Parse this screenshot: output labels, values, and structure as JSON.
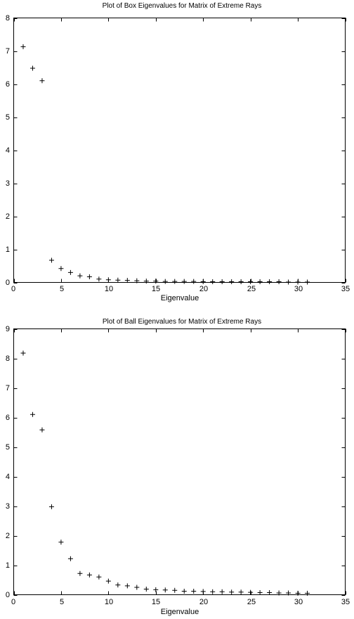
{
  "chart_data": [
    {
      "type": "scatter",
      "title": "Plot of Box Eigenvalues for Matrix of Extreme Rays",
      "xlabel": "Eigenvalue",
      "ylabel": "",
      "xlim": [
        0,
        35
      ],
      "ylim": [
        0,
        8
      ],
      "xticks": [
        "0",
        "5",
        "10",
        "15",
        "20",
        "25",
        "30",
        "35"
      ],
      "yticks": [
        "0",
        "1",
        "2",
        "3",
        "4",
        "5",
        "6",
        "7",
        "8"
      ],
      "marker": "+",
      "grid": false,
      "x": [
        1,
        2,
        3,
        4,
        5,
        6,
        7,
        8,
        9,
        10,
        11,
        12,
        13,
        14,
        15,
        16,
        17,
        18,
        19,
        20,
        21,
        22,
        23,
        24,
        25,
        26,
        27,
        28,
        29,
        30,
        31
      ],
      "y": [
        7.13,
        6.48,
        6.1,
        0.67,
        0.42,
        0.3,
        0.2,
        0.17,
        0.1,
        0.08,
        0.07,
        0.06,
        0.05,
        0.04,
        0.04,
        0.03,
        0.03,
        0.03,
        0.03,
        0.02,
        0.02,
        0.02,
        0.02,
        0.02,
        0.02,
        0.02,
        0.02,
        0.02,
        0.01,
        0.01,
        0.01
      ]
    },
    {
      "type": "scatter",
      "title": "Plot of Ball Eigenvalues for Matrix of Extreme Rays",
      "xlabel": "Eigenvalue",
      "ylabel": "",
      "xlim": [
        0,
        35
      ],
      "ylim": [
        0,
        9
      ],
      "xticks": [
        "0",
        "5",
        "10",
        "15",
        "20",
        "25",
        "30",
        "35"
      ],
      "yticks": [
        "0",
        "1",
        "2",
        "3",
        "4",
        "5",
        "6",
        "7",
        "8",
        "9"
      ],
      "marker": "+",
      "grid": false,
      "x": [
        1,
        2,
        3,
        4,
        5,
        6,
        7,
        8,
        9,
        10,
        11,
        12,
        13,
        14,
        15,
        16,
        17,
        18,
        19,
        20,
        21,
        22,
        23,
        24,
        25,
        26,
        27,
        28,
        29,
        30,
        31
      ],
      "y": [
        8.18,
        6.1,
        5.58,
        2.98,
        1.78,
        1.22,
        0.72,
        0.67,
        0.6,
        0.46,
        0.33,
        0.3,
        0.25,
        0.19,
        0.17,
        0.16,
        0.15,
        0.12,
        0.12,
        0.11,
        0.1,
        0.1,
        0.09,
        0.09,
        0.08,
        0.07,
        0.07,
        0.06,
        0.06,
        0.05,
        0.05
      ]
    }
  ]
}
